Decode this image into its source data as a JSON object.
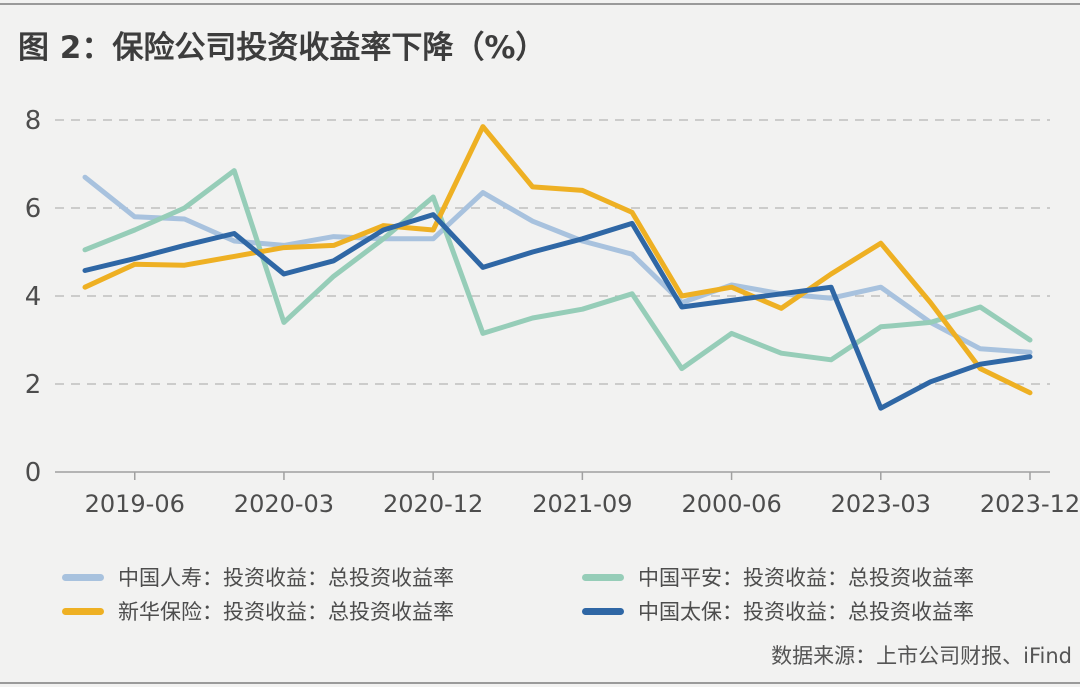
{
  "title": "图 2：保险公司投资收益率下降（%）",
  "source": "数据来源：上市公司财报、iFind",
  "chart_data": {
    "type": "line",
    "title": "图 2：保险公司投资收益率下降（%）",
    "xlabel": "",
    "ylabel": "",
    "ylim": [
      0,
      8
    ],
    "yticks": [
      "0",
      "2",
      "4",
      "6",
      "8"
    ],
    "x_tick_labels": [
      "2019-06",
      "2020-03",
      "2020-12",
      "2021-09",
      "2000-06",
      "2023-03",
      "2023-12"
    ],
    "x_tick_positions": [
      1,
      4,
      7,
      10,
      13,
      16,
      19
    ],
    "grid": "horizontal dashed",
    "legend_position": "bottom",
    "x": [
      0,
      1,
      2,
      3,
      4,
      5,
      6,
      7,
      8,
      9,
      10,
      11,
      12,
      13,
      14,
      15,
      16,
      17,
      18,
      19
    ],
    "series": [
      {
        "name": "中国人寿：投资收益：总投资收益率",
        "color": "#a8c2de",
        "values": [
          6.7,
          5.8,
          5.75,
          5.25,
          5.15,
          5.35,
          5.3,
          5.3,
          6.35,
          5.7,
          5.25,
          4.95,
          3.85,
          4.25,
          4.05,
          3.95,
          4.2,
          3.4,
          2.8,
          2.72
        ]
      },
      {
        "name": "中国平安：投资收益：总投资收益率",
        "color": "#96cdb8",
        "values": [
          5.05,
          5.5,
          6.0,
          6.85,
          3.4,
          4.45,
          5.3,
          6.25,
          3.15,
          3.5,
          3.7,
          4.05,
          2.35,
          3.15,
          2.7,
          2.55,
          3.3,
          3.4,
          3.75,
          3.0
        ]
      },
      {
        "name": "新华保险：投资收益：总投资收益率",
        "color": "#eeb023",
        "values": [
          4.2,
          4.72,
          4.7,
          4.9,
          5.1,
          5.15,
          5.6,
          5.5,
          7.85,
          6.48,
          6.4,
          5.9,
          4.0,
          4.2,
          3.72,
          4.5,
          5.2,
          3.85,
          2.35,
          1.8
        ]
      },
      {
        "name": "中国太保：投资收益：总投资收益率",
        "color": "#2f67a5",
        "values": [
          4.58,
          4.85,
          5.15,
          5.42,
          4.5,
          4.8,
          5.5,
          5.85,
          4.65,
          5.0,
          5.3,
          5.65,
          3.75,
          3.9,
          4.05,
          4.2,
          1.45,
          2.05,
          2.45,
          2.62
        ]
      }
    ]
  }
}
